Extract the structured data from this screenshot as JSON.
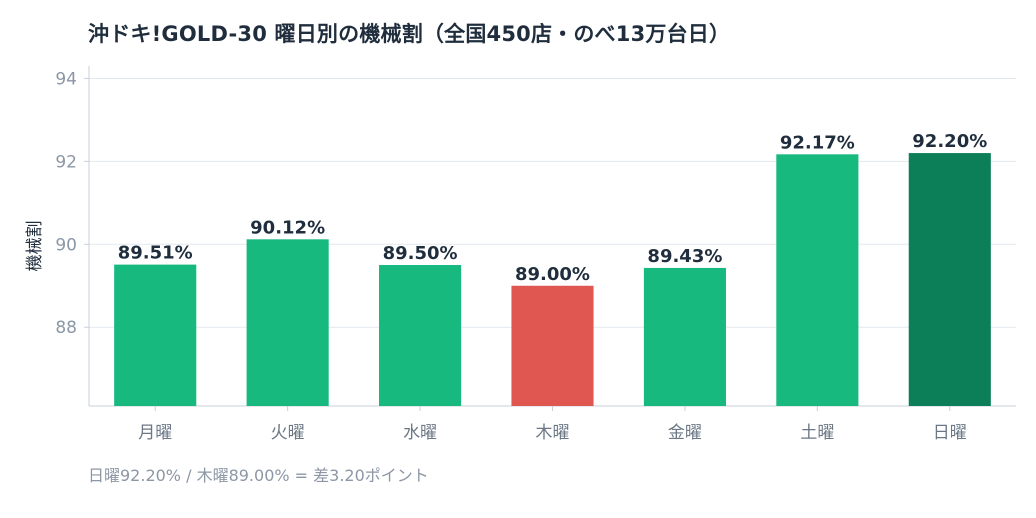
{
  "title": "沖ドキ!GOLD-30 曜日別の機械割（全国450店・のべ13万台日）",
  "footnote": "日曜92.20% / 木曜89.00% = 差3.20ポイント",
  "chart_data": {
    "type": "bar",
    "title": "沖ドキ!GOLD-30 曜日別の機械割（全国450店・のべ13万台日）",
    "xlabel": "",
    "ylabel": "機械割",
    "categories": [
      "月曜",
      "火曜",
      "水曜",
      "木曜",
      "金曜",
      "土曜",
      "日曜"
    ],
    "values": [
      89.51,
      90.12,
      89.5,
      89.0,
      89.43,
      92.17,
      92.2
    ],
    "data_labels": [
      "89.51%",
      "90.12%",
      "89.50%",
      "89.00%",
      "89.43%",
      "92.17%",
      "92.20%"
    ],
    "colors": [
      "#18b97f",
      "#18b97f",
      "#18b97f",
      "#e05650",
      "#18b97f",
      "#18b97f",
      "#0c7e58"
    ],
    "ylim": [
      86.1,
      94.3
    ],
    "yticks": [
      88,
      90,
      92,
      94
    ],
    "grid": true,
    "legend": "none"
  }
}
